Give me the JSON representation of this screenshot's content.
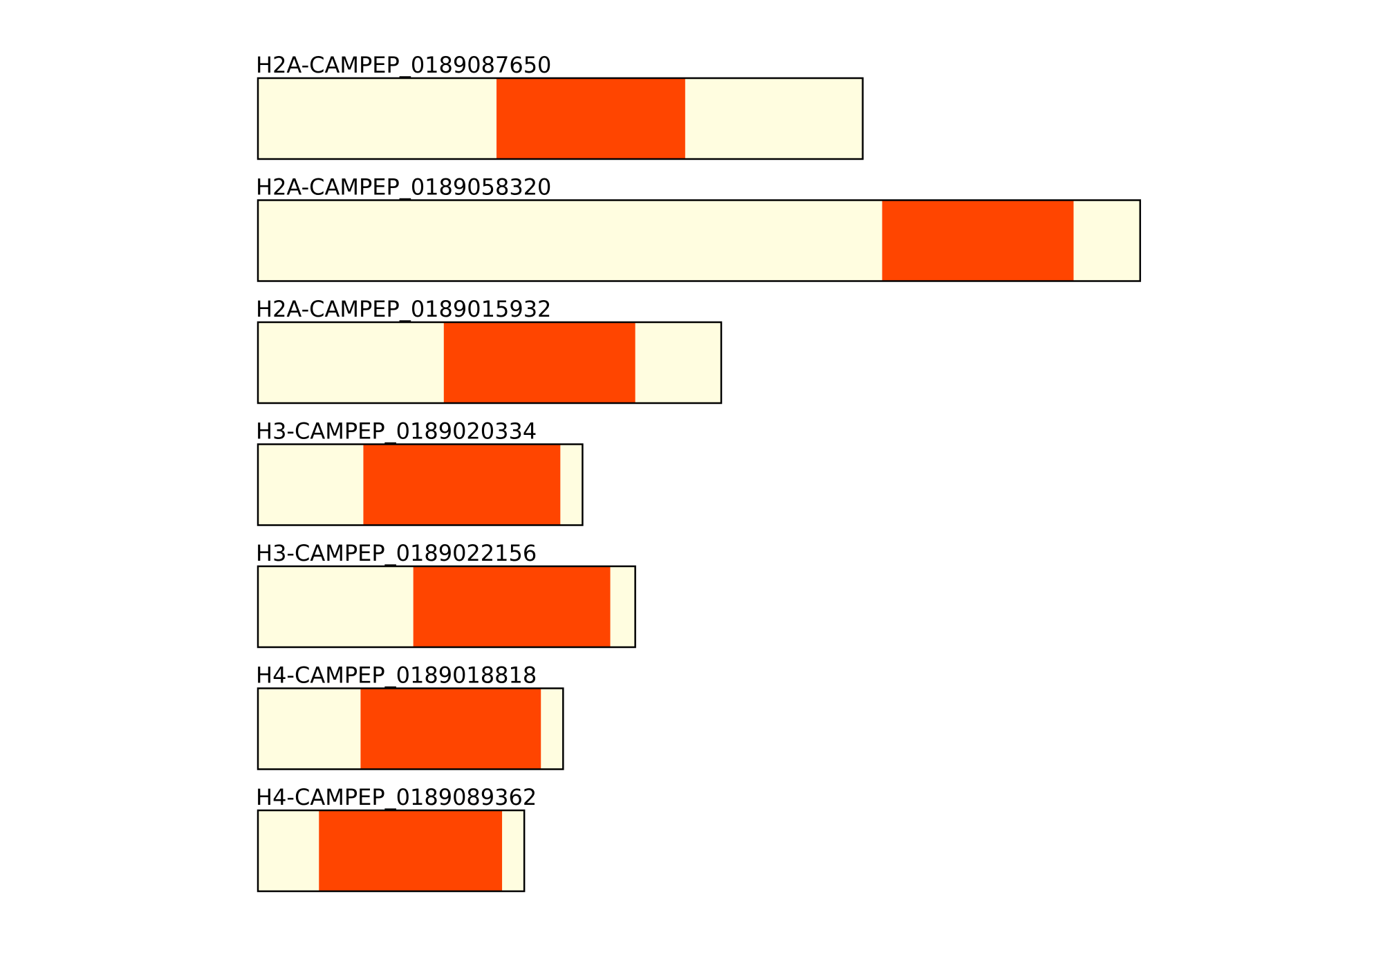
{
  "colors": {
    "background": "#ffffff",
    "sequence_fill": "#fffde0",
    "domain_fill": "#ff4500",
    "outline": "#000000"
  },
  "legend": {
    "sequence_label": "",
    "domain_label": ""
  },
  "sequences": [
    {
      "label": "H2A-CAMPEP_0189087650",
      "length": 218,
      "domain_start": 86,
      "domain_end": 154
    },
    {
      "label": "H2A-CAMPEP_0189058320",
      "length": 318,
      "domain_start": 225,
      "domain_end": 294
    },
    {
      "label": "H2A-CAMPEP_0189015932",
      "length": 167,
      "domain_start": 67,
      "domain_end": 136
    },
    {
      "label": "H3-CAMPEP_0189020334",
      "length": 117,
      "domain_start": 38,
      "domain_end": 109
    },
    {
      "label": "H3-CAMPEP_0189022156",
      "length": 136,
      "domain_start": 56,
      "domain_end": 127
    },
    {
      "label": "H4-CAMPEP_0189018818",
      "length": 110,
      "domain_start": 37,
      "domain_end": 102
    },
    {
      "label": "H4-CAMPEP_0189089362",
      "length": 96,
      "domain_start": 22,
      "domain_end": 88
    }
  ]
}
